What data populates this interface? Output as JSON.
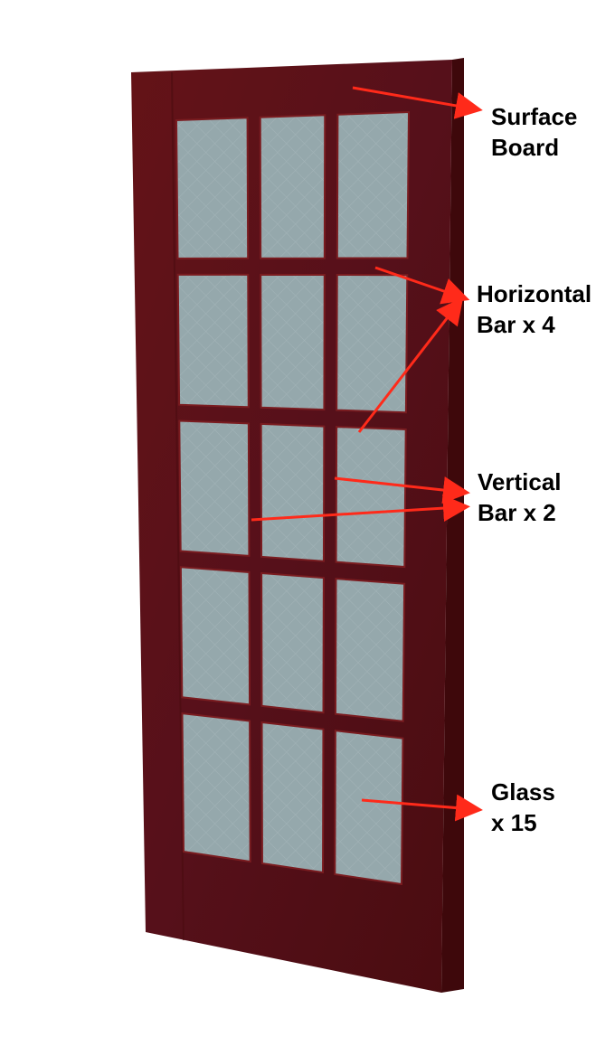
{
  "labels": {
    "surface_board": {
      "line1": "Surface",
      "line2": "Board"
    },
    "horizontal_bar": {
      "line1": "Horizontal",
      "line2": "Bar x 4"
    },
    "vertical_bar": {
      "line1": "Vertical",
      "line2": "Bar x 2"
    },
    "glass": {
      "line1": "Glass",
      "line2": "x 15"
    }
  },
  "colors": {
    "frame": "#5a0e12",
    "frame_side": "#3e080b",
    "frame_edge": "#7a1c20",
    "glass": "#95a8ac",
    "arrow": "#ff2a1a"
  }
}
